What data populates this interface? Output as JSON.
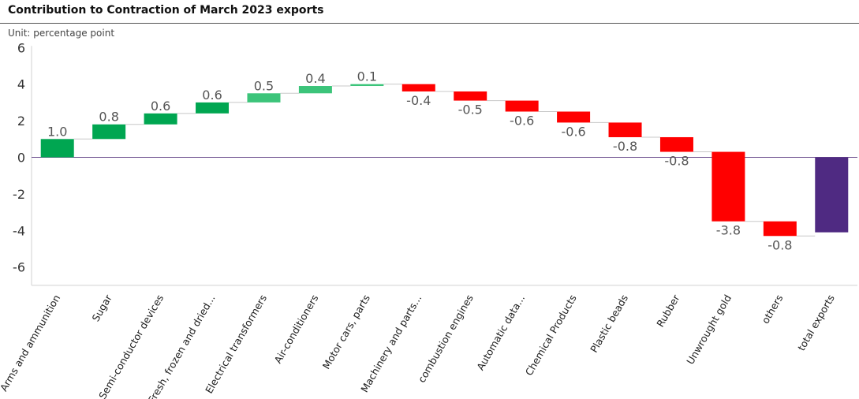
{
  "header": {
    "title": "Contribution to Contraction of March 2023 exports",
    "unit": "Unit: percentage point"
  },
  "colors": {
    "dark_green": "#00a651",
    "light_green": "#3cc47a",
    "red": "#ff0000",
    "total": "#4f2a82",
    "zero_line": "#6a4b8c",
    "connector": "#c8c8c8",
    "axis": "#d0d0d0"
  },
  "chart_data": {
    "type": "bar",
    "subtype": "waterfall",
    "title": "Contribution to Contraction of March 2023 exports",
    "subtitle": "Unit: percentage point",
    "ylim": [
      -7,
      6
    ],
    "yticks": [
      6,
      4,
      2,
      0,
      -2,
      -4,
      -6
    ],
    "categories": [
      "Arms and ammunition",
      "Sugar",
      "Semi-conductor devices",
      "Fresh, frozen and dried...",
      "Electrical transformers",
      "Air-conditioners",
      "Motor cars, parts",
      "Machinery and parts...",
      "combustion engines",
      "Automatic data...",
      "Chemical Products",
      "Plastic beads",
      "Rubber",
      "Unwrought gold",
      "others",
      "total exports"
    ],
    "values": [
      1.0,
      0.8,
      0.6,
      0.6,
      0.5,
      0.4,
      0.1,
      -0.4,
      -0.5,
      -0.6,
      -0.6,
      -0.8,
      -0.8,
      -3.8,
      -0.8,
      -4.1
    ],
    "labels": [
      "1.0",
      "0.8",
      "0.6",
      "0.6",
      "0.5",
      "0.4",
      "0.1",
      "-0.4",
      "-0.5",
      "-0.6",
      "-0.6",
      "-0.8",
      "-0.8",
      "-3.8",
      "-0.8",
      ""
    ],
    "color_keys": [
      "dark_green",
      "dark_green",
      "dark_green",
      "dark_green",
      "light_green",
      "light_green",
      "light_green",
      "red",
      "red",
      "red",
      "red",
      "red",
      "red",
      "red",
      "red",
      "total"
    ],
    "grid": false,
    "legend": "none"
  }
}
